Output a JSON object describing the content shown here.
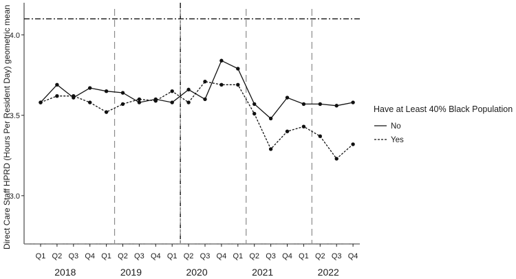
{
  "chart_data": {
    "type": "line",
    "title": "",
    "ylabel": "Direct Care Staff HPRD (Hours Per Resident Day) geometric mean",
    "xlabel": "",
    "ylim": [
      2.7,
      4.2
    ],
    "yticks": [
      3.0,
      3.5,
      4.0
    ],
    "ytick_labels": [
      "3.0",
      "3.5",
      "4.0"
    ],
    "categories": [
      "Q1",
      "Q2",
      "Q3",
      "Q4",
      "Q1",
      "Q2",
      "Q3",
      "Q4",
      "Q1",
      "Q2",
      "Q3",
      "Q4",
      "Q1",
      "Q2",
      "Q3",
      "Q4",
      "Q1",
      "Q2",
      "Q3",
      "Q4"
    ],
    "years": [
      "2018",
      "2019",
      "2020",
      "2021",
      "2022"
    ],
    "series": [
      {
        "name": "No",
        "style": "solid",
        "values": [
          3.58,
          3.69,
          3.61,
          3.67,
          3.65,
          3.64,
          3.58,
          3.6,
          3.58,
          3.66,
          3.6,
          3.84,
          3.79,
          3.57,
          3.48,
          3.61,
          3.57,
          3.57,
          3.56,
          3.58
        ]
      },
      {
        "name": "Yes",
        "style": "dashed",
        "values": [
          3.58,
          3.62,
          3.62,
          3.58,
          3.52,
          3.57,
          3.6,
          3.59,
          3.65,
          3.58,
          3.71,
          3.69,
          3.69,
          3.51,
          3.29,
          3.4,
          3.43,
          3.37,
          3.23,
          3.32
        ]
      }
    ],
    "reference_lines": [
      {
        "axis": "y",
        "value": 4.1,
        "style": "dashdot",
        "color": "#111111"
      },
      {
        "axis": "y",
        "value": 2.7,
        "style": "dashdot",
        "color": "#777777"
      },
      {
        "axis": "x",
        "after_index": 8.5,
        "style": "dashdot",
        "color": "#111111"
      }
    ],
    "quarter_dividers": [
      4.5,
      8.5,
      12.5,
      16.5
    ],
    "divider_color": "#8a8a8a",
    "legend": {
      "title": "Have at Least 40% Black Population",
      "position": "right",
      "entries": [
        {
          "label": "No",
          "style": "solid"
        },
        {
          "label": "Yes",
          "style": "dashed"
        }
      ]
    }
  }
}
